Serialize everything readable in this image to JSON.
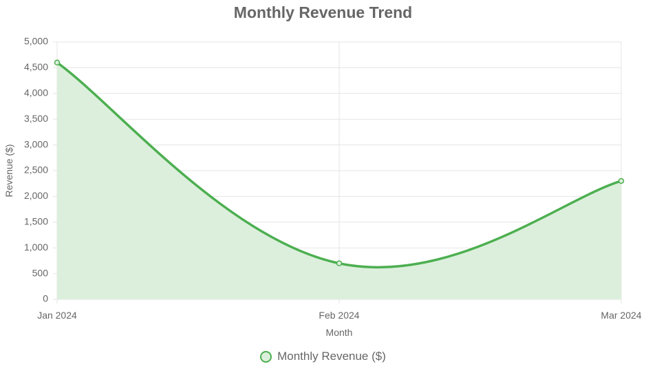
{
  "chart_data": {
    "type": "area",
    "title": "Monthly Revenue Trend",
    "xlabel": "Month",
    "ylabel": "Revenue ($)",
    "categories": [
      "Jan 2024",
      "Feb 2024",
      "Mar 2024"
    ],
    "series": [
      {
        "name": "Monthly Revenue ($)",
        "values": [
          4600,
          700,
          2300
        ]
      }
    ],
    "ylim": [
      0,
      5000
    ],
    "yticks": [
      "0",
      "500",
      "1,000",
      "1,500",
      "2,000",
      "2,500",
      "3,000",
      "3,500",
      "4,000",
      "4,500",
      "5,000"
    ],
    "grid": true,
    "legend": "bottom",
    "colors": {
      "line": "#4caf50",
      "fill": "#dcefdc",
      "grid": "#e5e5e5",
      "text": "#666666"
    }
  }
}
